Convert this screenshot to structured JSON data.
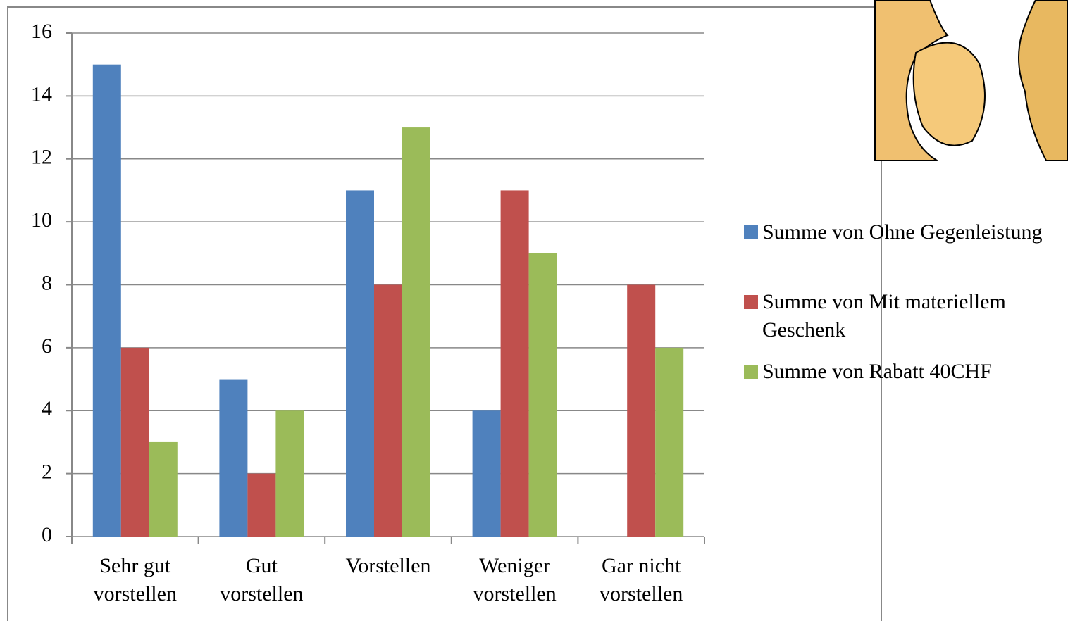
{
  "chart_data": {
    "type": "bar",
    "categories": [
      "Sehr gut vorstellen",
      "Gut vorstellen",
      "Vorstellen",
      "Weniger vorstellen",
      "Gar nicht vorstellen"
    ],
    "series": [
      {
        "name": "Summe von Ohne Gegenleistung",
        "color": "#4f81bd",
        "values": [
          15,
          5,
          11,
          4,
          0
        ]
      },
      {
        "name": "Summe von Mit materiellem Geschenk",
        "color": "#c0504d",
        "values": [
          6,
          2,
          8,
          11,
          8
        ]
      },
      {
        "name": "Summe von Rabatt 40CHF",
        "color": "#9bbb59",
        "values": [
          3,
          4,
          13,
          9,
          6
        ]
      }
    ],
    "ylim": [
      0,
      16
    ],
    "yticks": [
      0,
      2,
      4,
      6,
      8,
      10,
      12,
      14,
      16
    ],
    "grid": true,
    "legend": "right"
  }
}
